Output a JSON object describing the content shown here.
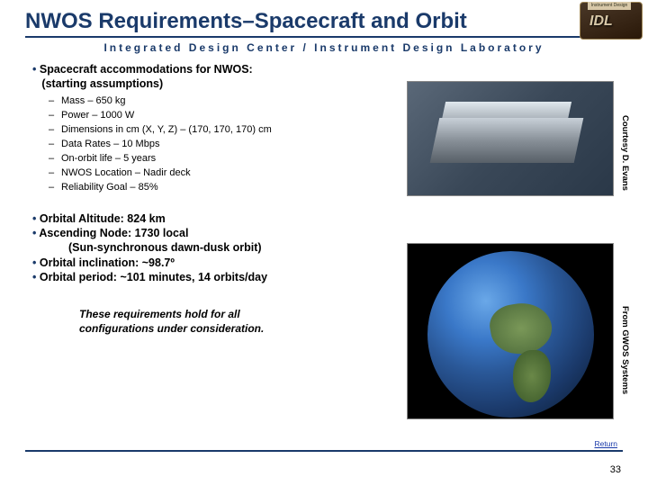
{
  "title": "NWOS Requirements–Spacecraft and Orbit",
  "subtitle": "Integrated Design Center / Instrument Design Laboratory",
  "logo": {
    "tab": "Instrument Design",
    "text": "IDL"
  },
  "section1": {
    "heading_l1": "Spacecraft accommodations for NWOS:",
    "heading_l2": "(starting assumptions)",
    "items": [
      "Mass – 650 kg",
      "Power – 1000 W",
      "Dimensions in cm (X, Y, Z) – (170, 170, 170) cm",
      "Data Rates – 10 Mbps",
      "On-orbit life – 5 years",
      "NWOS Location – Nadir deck",
      "Reliability Goal – 85%"
    ]
  },
  "section2": {
    "lines": [
      "Orbital Altitude:  824 km",
      "Ascending Node: 1730 local"
    ],
    "indent": "(Sun-synchronous dawn-dusk orbit)",
    "lines2": [
      "Orbital inclination: ~98.7º",
      "Orbital period: ~101 minutes, 14 orbits/day"
    ]
  },
  "footnote_l1": "These requirements hold for all",
  "footnote_l2": "configurations under consideration.",
  "credits": {
    "spacecraft": "Courtesy D. Evans",
    "earth": "From GWOS Systems"
  },
  "return_label": "Return",
  "page_number": "33",
  "colors": {
    "brand": "#1a3a6a",
    "link": "#1a3aaa"
  }
}
